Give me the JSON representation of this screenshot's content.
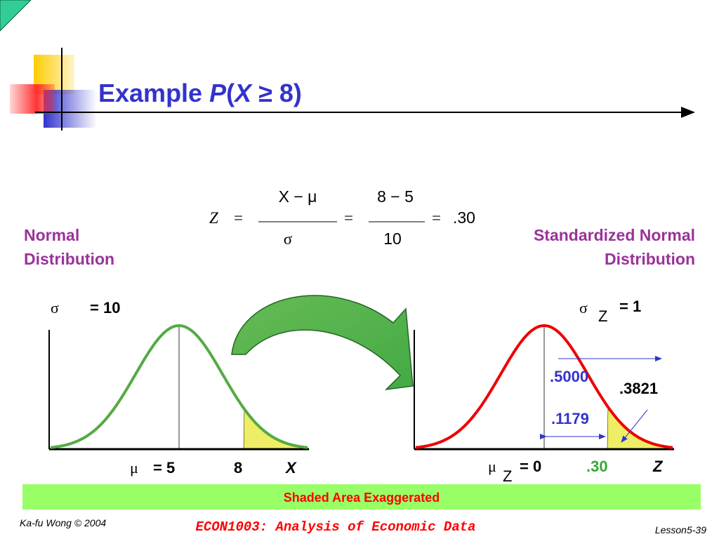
{
  "title": {
    "word": "Example ",
    "p": "P",
    "open": "(",
    "x": "X",
    "rest": " ≥ 8)"
  },
  "formula": {
    "z": "Z",
    "eq1": "=",
    "num1": "X − μ",
    "den1": "σ",
    "eq2": "=",
    "num2": "8 − 5",
    "den2": "10",
    "eq3": "=",
    "result": ".30"
  },
  "left": {
    "heading": [
      "Normal",
      "Distribution"
    ],
    "sigma": "σ",
    "sigma_value": "= 10",
    "mu": "μ",
    "mu_value": "= 5",
    "cut": "8",
    "axis": "X"
  },
  "right": {
    "heading": [
      "Standardized Normal",
      "Distribution"
    ],
    "sigma": "σ",
    "sigma_sub": "Z",
    "sigma_value": "= 1",
    "half": ".5000",
    "tail": ".3821",
    "middle": ".1179",
    "mu": "μ",
    "mu_sub": "Z",
    "mu_value": "= 0",
    "cut": ".30",
    "axis": "Z"
  },
  "banner": "Shaded Area Exaggerated",
  "footer": {
    "author": "Ka-fu Wong © 2004",
    "course": "ECON1003: Analysis of Economic Data",
    "page": "Lesson5-39"
  }
}
